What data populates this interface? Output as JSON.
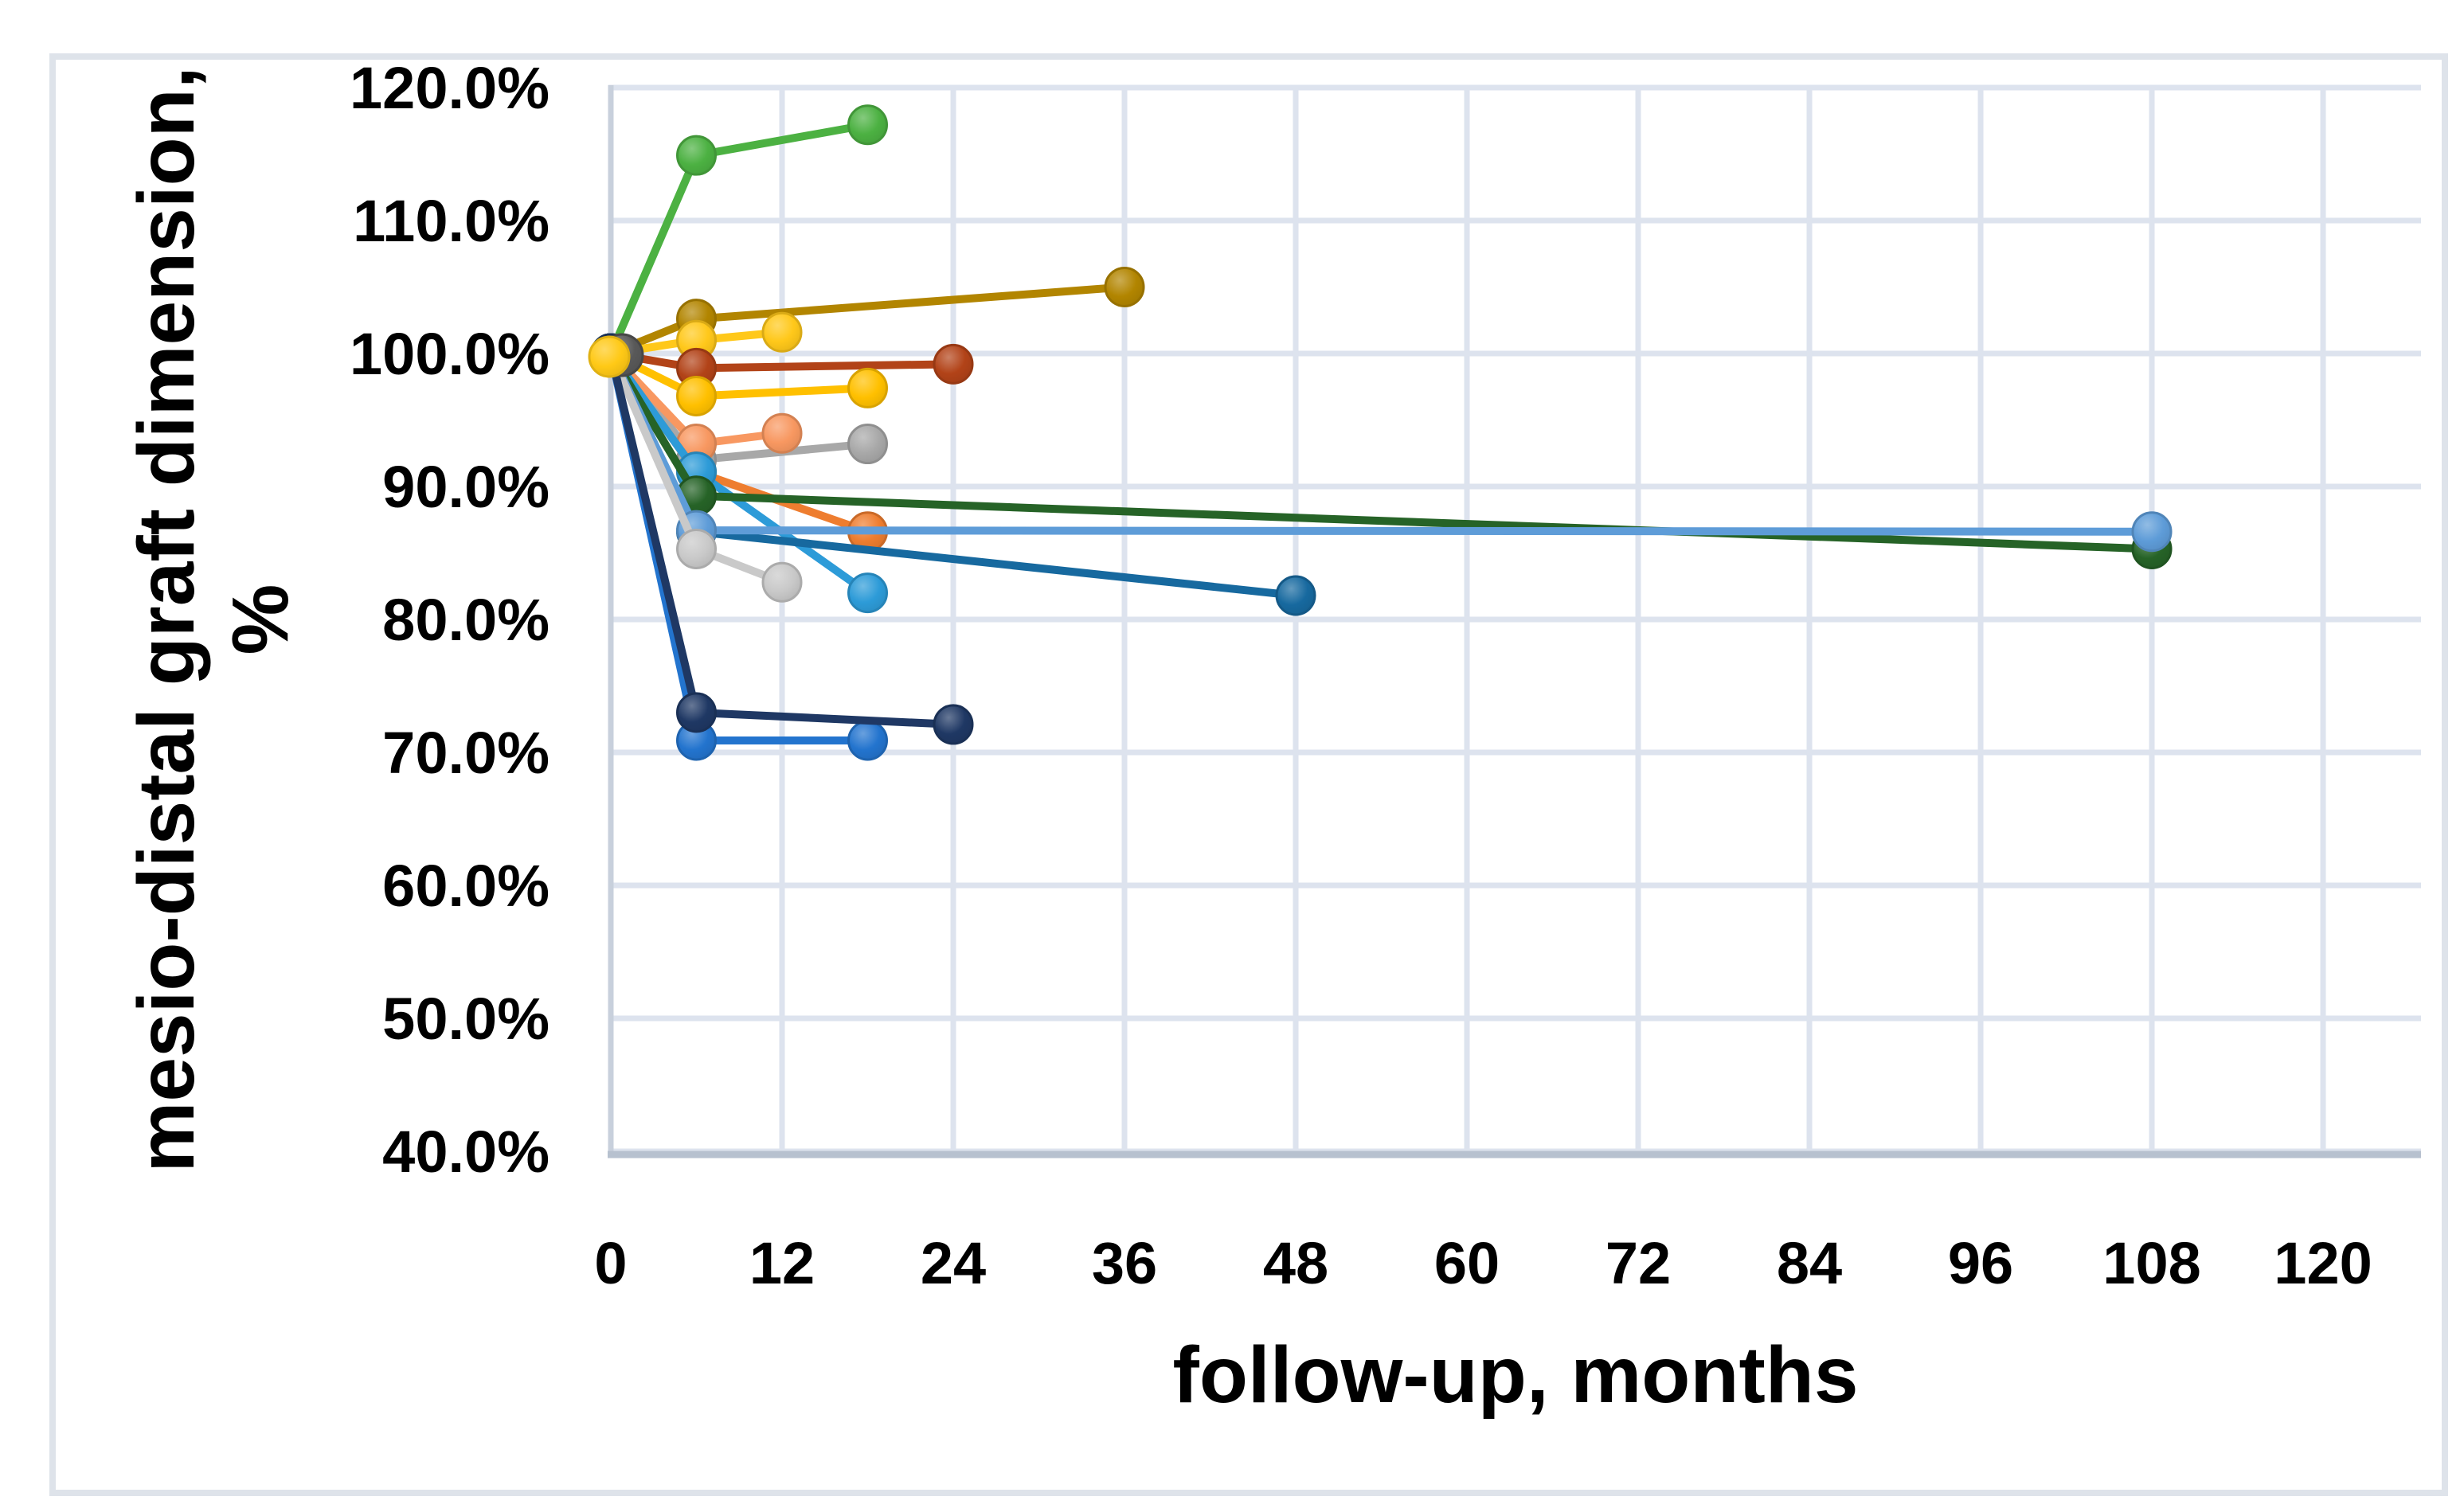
{
  "figure": {
    "background_color": "#FFFFFF",
    "border_color": "#DEE3EA",
    "gridline_color": "#DDE3EE",
    "x_axis_line_color": "#B7C1CF",
    "y_axis_line_color": "#C8D0DC",
    "tick_label_color": "#000000"
  },
  "chart_data": {
    "type": "line",
    "title": "",
    "xlabel": "follow-up, months",
    "ylabel": "mesio-distal graft dimension, %",
    "ylabel_lines": [
      "mesio-distal graft dimension,",
      "%"
    ],
    "xlim": [
      0,
      120
    ],
    "ylim": [
      40,
      120
    ],
    "grid": true,
    "legend": "none",
    "x_ticks": [
      0,
      12,
      24,
      36,
      48,
      60,
      72,
      84,
      96,
      108,
      120
    ],
    "x_tick_labels": [
      "0",
      "12",
      "24",
      "36",
      "48",
      "60",
      "72",
      "84",
      "96",
      "108",
      "120"
    ],
    "y_ticks": [
      120,
      110,
      100,
      90,
      80,
      70,
      60,
      50,
      40
    ],
    "y_tick_labels": [
      "120.0%",
      "110.0%",
      "100.0%",
      "90.0%",
      "80.0%",
      "70.0%",
      "60.0%",
      "50.0%",
      "40.0%"
    ],
    "series": [
      {
        "name": "green",
        "color": "#4CB142",
        "points": [
          [
            0,
            100
          ],
          [
            6,
            114.9
          ],
          [
            18,
            117.2
          ]
        ]
      },
      {
        "name": "dark-gold",
        "color": "#B28500",
        "points": [
          [
            0,
            100
          ],
          [
            6,
            102.6
          ],
          [
            36,
            105.0
          ]
        ]
      },
      {
        "name": "light-yellow",
        "color": "#FFC81A",
        "points": [
          [
            0,
            100
          ],
          [
            6,
            101.0
          ],
          [
            12,
            101.6
          ]
        ]
      },
      {
        "name": "dark-red",
        "color": "#B24318",
        "points": [
          [
            0,
            100
          ],
          [
            6,
            98.9
          ],
          [
            24,
            99.2
          ]
        ]
      },
      {
        "name": "yellow",
        "color": "#FFC000",
        "points": [
          [
            0,
            100
          ],
          [
            6,
            96.8
          ],
          [
            18,
            97.4
          ]
        ]
      },
      {
        "name": "gray",
        "color": "#A8A8A8",
        "points": [
          [
            0,
            100
          ],
          [
            6,
            92.0
          ],
          [
            18,
            93.2
          ]
        ]
      },
      {
        "name": "salmon",
        "color": "#F89861",
        "points": [
          [
            0,
            100
          ],
          [
            6,
            93.2
          ],
          [
            12,
            94.0
          ]
        ]
      },
      {
        "name": "orange",
        "color": "#EE7D2F",
        "points": [
          [
            0,
            100
          ],
          [
            6,
            91.1
          ],
          [
            18,
            86.6
          ]
        ]
      },
      {
        "name": "sky-blue",
        "color": "#2D9BD8",
        "points": [
          [
            0,
            100
          ],
          [
            6,
            91.1
          ],
          [
            18,
            82.0
          ]
        ]
      },
      {
        "name": "dark-green",
        "color": "#266327",
        "points": [
          [
            0,
            100
          ],
          [
            6,
            89.3
          ],
          [
            108,
            85.3
          ]
        ]
      },
      {
        "name": "steel-blue",
        "color": "#17699F",
        "points": [
          [
            0,
            100
          ],
          [
            6,
            86.6
          ],
          [
            48,
            81.8
          ]
        ]
      },
      {
        "name": "cornflower-blue",
        "color": "#5E9CD8",
        "points": [
          [
            0,
            100
          ],
          [
            6,
            86.7
          ],
          [
            108,
            86.6
          ]
        ]
      },
      {
        "name": "light-gray",
        "color": "#C9C9C9",
        "points": [
          [
            0,
            100
          ],
          [
            6,
            85.3
          ],
          [
            12,
            82.8
          ]
        ]
      },
      {
        "name": "bright-blue",
        "color": "#2374CE",
        "points": [
          [
            0,
            100
          ],
          [
            6,
            70.9
          ],
          [
            18,
            70.9
          ]
        ]
      },
      {
        "name": "navy",
        "color": "#1F3864",
        "points": [
          [
            0,
            100
          ],
          [
            6,
            73.0
          ],
          [
            24,
            72.1
          ]
        ]
      }
    ],
    "origin_marker": {
      "front_color": "#FFC916",
      "back_color": "#595959"
    }
  }
}
